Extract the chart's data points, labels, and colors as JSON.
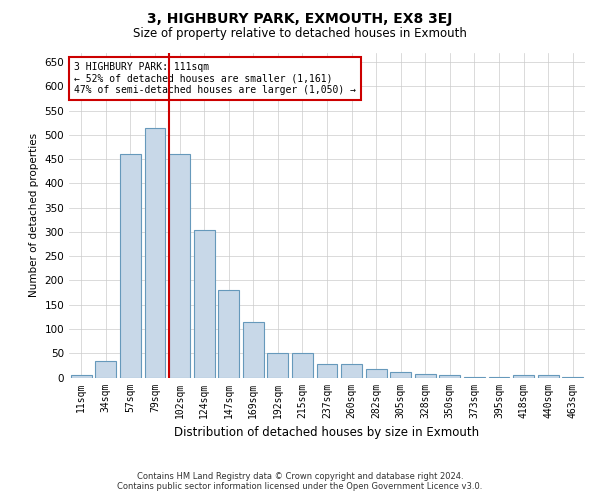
{
  "title": "3, HIGHBURY PARK, EXMOUTH, EX8 3EJ",
  "subtitle": "Size of property relative to detached houses in Exmouth",
  "xlabel": "Distribution of detached houses by size in Exmouth",
  "ylabel": "Number of detached properties",
  "categories": [
    "11sqm",
    "34sqm",
    "57sqm",
    "79sqm",
    "102sqm",
    "124sqm",
    "147sqm",
    "169sqm",
    "192sqm",
    "215sqm",
    "237sqm",
    "260sqm",
    "282sqm",
    "305sqm",
    "328sqm",
    "350sqm",
    "373sqm",
    "395sqm",
    "418sqm",
    "440sqm",
    "463sqm"
  ],
  "values": [
    5,
    35,
    460,
    515,
    460,
    305,
    180,
    115,
    50,
    50,
    27,
    27,
    18,
    12,
    8,
    5,
    2,
    2,
    5,
    5,
    2
  ],
  "bar_color": "#c8d8e8",
  "bar_edge_color": "#6699bb",
  "marker_index": 4,
  "marker_color": "#cc0000",
  "ylim": [
    0,
    670
  ],
  "yticks": [
    0,
    50,
    100,
    150,
    200,
    250,
    300,
    350,
    400,
    450,
    500,
    550,
    600,
    650
  ],
  "annotation_title": "3 HIGHBURY PARK: 111sqm",
  "annotation_line1": "← 52% of detached houses are smaller (1,161)",
  "annotation_line2": "47% of semi-detached houses are larger (1,050) →",
  "annotation_box_color": "#ffffff",
  "annotation_box_edge": "#cc0000",
  "footer_line1": "Contains HM Land Registry data © Crown copyright and database right 2024.",
  "footer_line2": "Contains public sector information licensed under the Open Government Licence v3.0.",
  "background_color": "#ffffff",
  "grid_color": "#cccccc"
}
